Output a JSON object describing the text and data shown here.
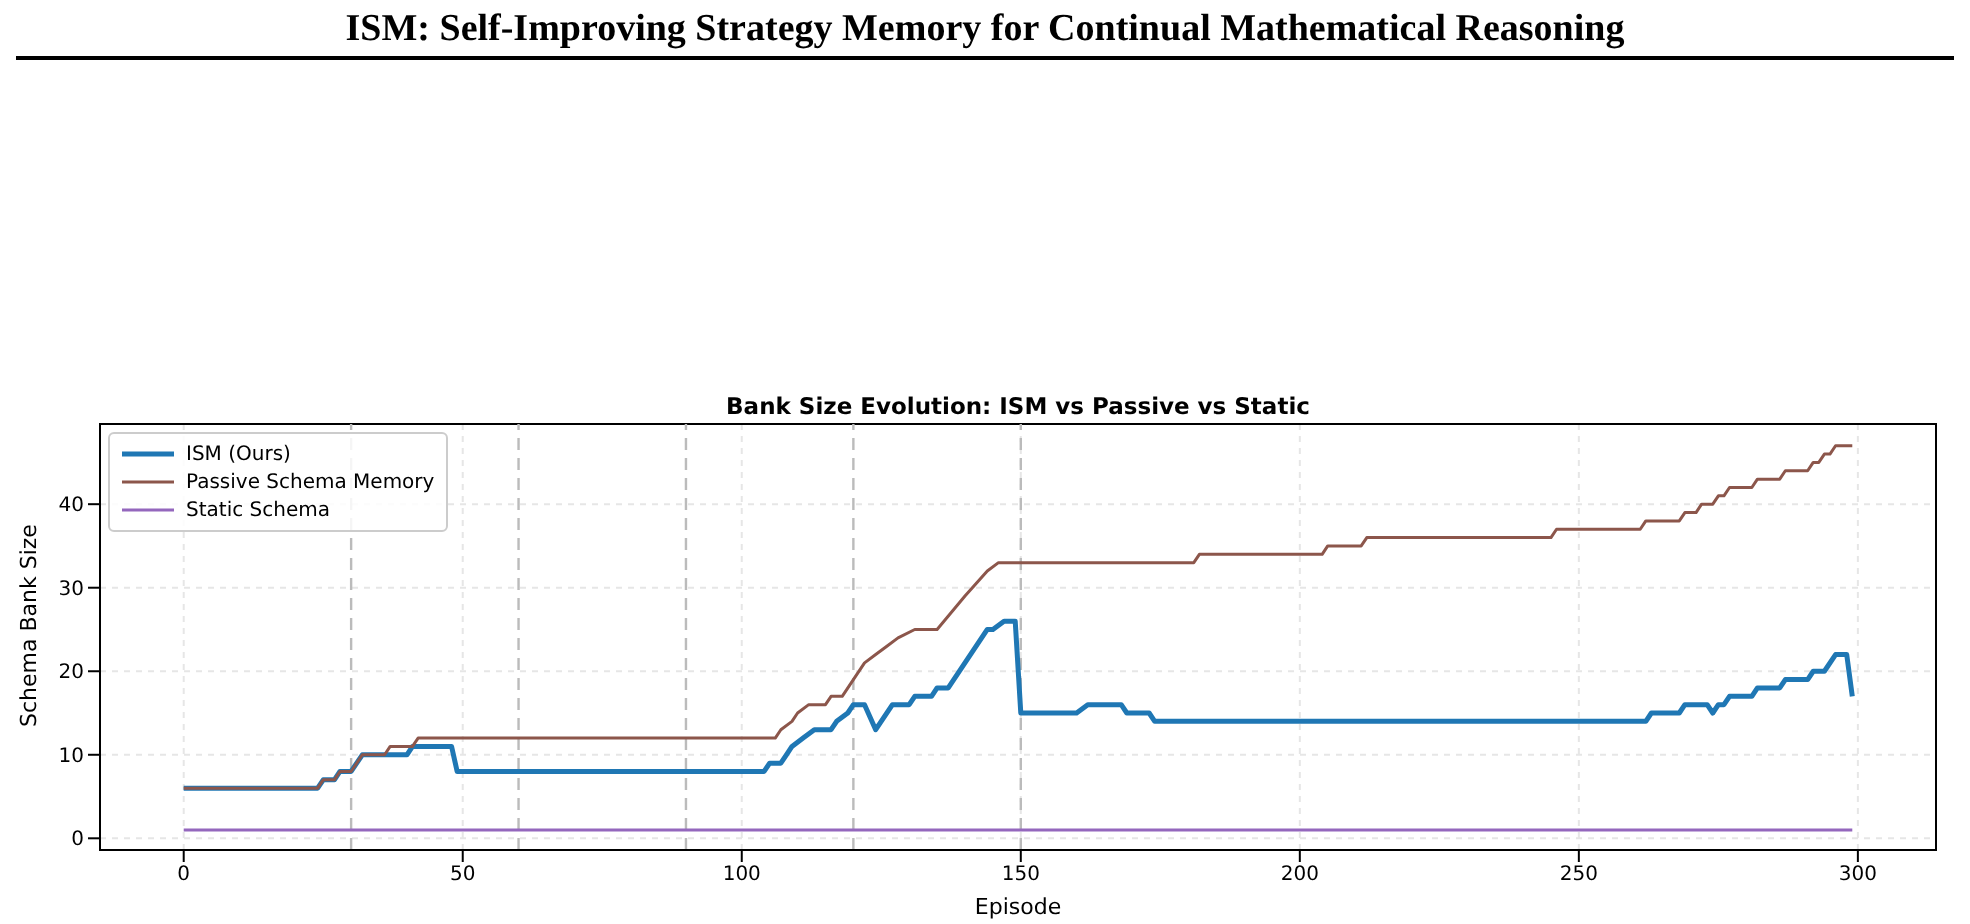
{
  "chart_data": {
    "type": "line",
    "title": "Bank Size Evolution: ISM vs Passive vs Static",
    "xlabel": "Episode",
    "ylabel": "Schema Bank Size",
    "annotations": [
      "ISM: Self-Improving Strategy Memory for Continual Mathematical Reasoning"
    ],
    "xlim": [
      -15,
      314
    ],
    "xticks": [
      0,
      50,
      100,
      150,
      200,
      250,
      300
    ],
    "ylim": [
      -1.4,
      49.6
    ],
    "yticks": [
      0,
      10,
      20,
      30,
      40
    ],
    "grid": true,
    "legend": "top left",
    "marker": "none",
    "line_style": "solid",
    "ref_lines": [
      {
        "axis": "x",
        "value": 30,
        "color": "#bbbbbb",
        "line_style": "dashed"
      },
      {
        "axis": "x",
        "value": 60,
        "color": "#bbbbbb",
        "line_style": "dashed"
      },
      {
        "axis": "x",
        "value": 90,
        "color": "#bbbbbb",
        "line_style": "dashed"
      },
      {
        "axis": "x",
        "value": 120,
        "color": "#bbbbbb",
        "line_style": "dashed"
      },
      {
        "axis": "x",
        "value": 150,
        "color": "#bbbbbb",
        "line_style": "dashed"
      }
    ],
    "series": [
      {
        "name": "ISM (Ours)",
        "color": "#1f77b4",
        "x": [
          0,
          24,
          25,
          27,
          28,
          30,
          32,
          40,
          41,
          48,
          49,
          104,
          105,
          107,
          108,
          109,
          111,
          113,
          116,
          117,
          119,
          120,
          122,
          124,
          127,
          130,
          131,
          134,
          135,
          137,
          144,
          145,
          147,
          149,
          150,
          160,
          162,
          168,
          169,
          173,
          174,
          262,
          263,
          268,
          269,
          273,
          274,
          275,
          276,
          277,
          281,
          282,
          286,
          287,
          291,
          292,
          294,
          296,
          298,
          299
        ],
        "values": [
          6,
          6,
          7,
          7,
          8,
          8,
          10,
          10,
          11,
          11,
          8,
          8,
          9,
          9,
          10,
          11,
          12,
          13,
          13,
          14,
          15,
          16,
          16,
          13,
          16,
          16,
          17,
          17,
          18,
          18,
          25,
          25,
          26,
          26,
          15,
          15,
          16,
          16,
          15,
          15,
          14,
          14,
          15,
          15,
          16,
          16,
          15,
          16,
          16,
          17,
          17,
          18,
          18,
          19,
          19,
          20,
          20,
          22,
          22,
          17
        ]
      },
      {
        "name": "Passive Schema Memory",
        "color": "#8c564b",
        "x": [
          0,
          24,
          25,
          27,
          28,
          30,
          32,
          36,
          37,
          41,
          42,
          106,
          107,
          109,
          110,
          112,
          115,
          116,
          118,
          120,
          122,
          124,
          126,
          128,
          131,
          135,
          140,
          144,
          146,
          181,
          182,
          204,
          205,
          211,
          212,
          245,
          246,
          261,
          262,
          268,
          269,
          271,
          272,
          274,
          275,
          276,
          277,
          281,
          282,
          286,
          287,
          291,
          292,
          293,
          294,
          295,
          296,
          299
        ],
        "values": [
          6,
          6,
          7,
          7,
          8,
          8,
          10,
          10,
          11,
          11,
          12,
          12,
          13,
          14,
          15,
          16,
          16,
          17,
          17,
          19,
          21,
          22,
          23,
          24,
          25,
          25,
          29,
          32,
          33,
          33,
          34,
          34,
          35,
          35,
          36,
          36,
          37,
          37,
          38,
          38,
          39,
          39,
          40,
          40,
          41,
          41,
          42,
          42,
          43,
          43,
          44,
          44,
          45,
          45,
          46,
          46,
          47,
          47
        ]
      },
      {
        "name": "Static Schema",
        "color": "#9467bd",
        "x": [
          0,
          299
        ],
        "values": [
          1,
          1
        ]
      }
    ]
  }
}
